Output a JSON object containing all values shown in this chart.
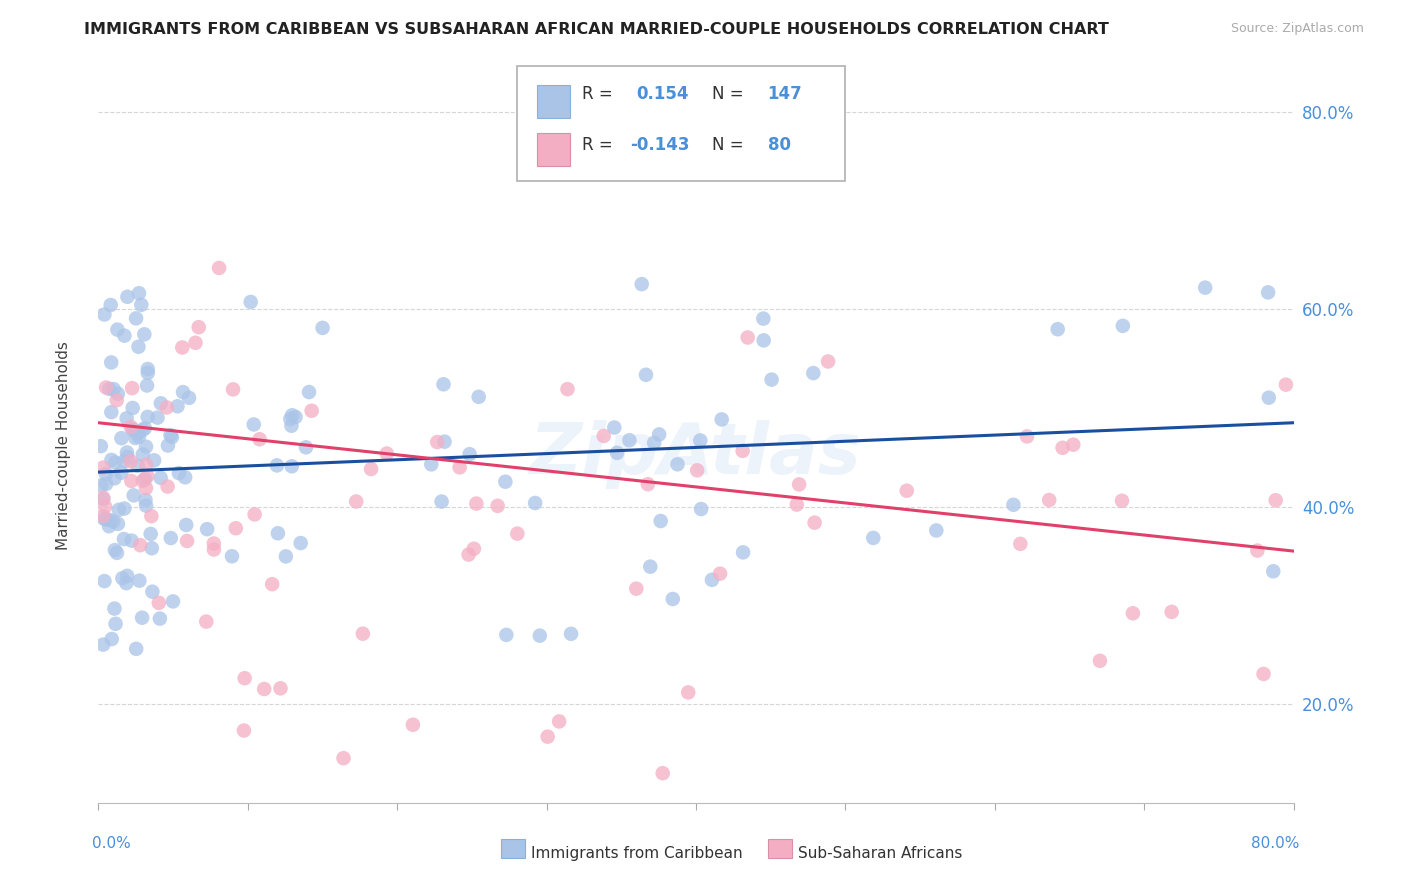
{
  "title": "IMMIGRANTS FROM CARIBBEAN VS SUBSAHARAN AFRICAN MARRIED-COUPLE HOUSEHOLDS CORRELATION CHART",
  "source": "Source: ZipAtlas.com",
  "ylabel": "Married-couple Households",
  "xlim": [
    0,
    0.8
  ],
  "ylim": [
    0.1,
    0.85
  ],
  "yticks": [
    0.2,
    0.4,
    0.6,
    0.8
  ],
  "ytick_labels": [
    "20.0%",
    "40.0%",
    "60.0%",
    "80.0%"
  ],
  "r_caribbean": 0.154,
  "n_caribbean": 147,
  "r_african": -0.143,
  "n_african": 80,
  "color_caribbean": "#aac4e8",
  "color_african": "#f4aec4",
  "line_color_caribbean": "#1a4fa0",
  "line_color_african": "#e0406a",
  "background_color": "#ffffff",
  "grid_color": "#cccccc",
  "watermark_color": "#9bbfe8",
  "watermark_alpha": 0.18,
  "seed_carib": 42,
  "seed_afric": 7
}
